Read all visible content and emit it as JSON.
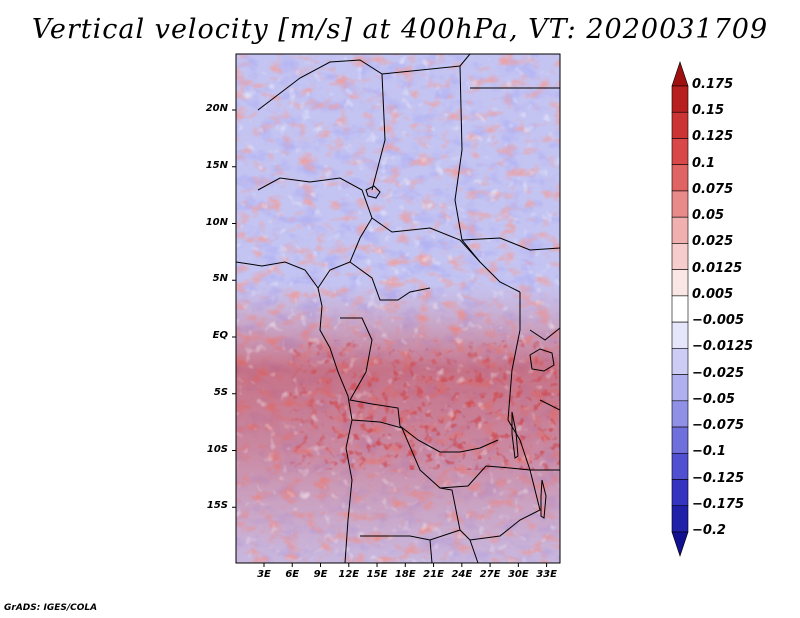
{
  "title": "Vertical velocity [m/s] at 400hPa, VT: 2020031709",
  "footer": "GrADS: IGES/COLA",
  "map": {
    "lat_labels": [
      "20N",
      "15N",
      "10N",
      "5N",
      "EQ",
      "5S",
      "10S",
      "15S"
    ],
    "lat_values": [
      20,
      15,
      10,
      5,
      0,
      -5,
      -10,
      -15
    ],
    "lon_labels": [
      "3E",
      "6E",
      "9E",
      "12E",
      "15E",
      "18E",
      "21E",
      "24E",
      "27E",
      "30E",
      "33E"
    ],
    "lon_values": [
      3,
      6,
      9,
      12,
      15,
      18,
      21,
      24,
      27,
      30,
      33
    ],
    "lat_range": [
      -20,
      25
    ],
    "lon_range": [
      0,
      35
    ]
  },
  "colorbar": {
    "labels": [
      "0.175",
      "0.15",
      "0.125",
      "0.1",
      "0.075",
      "0.05",
      "0.025",
      "0.0125",
      "0.005",
      "−0.005",
      "−0.0125",
      "−0.025",
      "−0.05",
      "−0.075",
      "−0.1",
      "−0.125",
      "−0.175",
      "−0.2"
    ],
    "colors": [
      "#a01010",
      "#b82020",
      "#cc3333",
      "#d84848",
      "#e06464",
      "#e88a8a",
      "#f0b0b0",
      "#f6cccc",
      "#fbe6e6",
      "#ffffff",
      "#e6e6fa",
      "#ccccf4",
      "#b0b0ee",
      "#9090e6",
      "#7070dc",
      "#5050d0",
      "#3434c0",
      "#2020a8",
      "#101090"
    ]
  }
}
